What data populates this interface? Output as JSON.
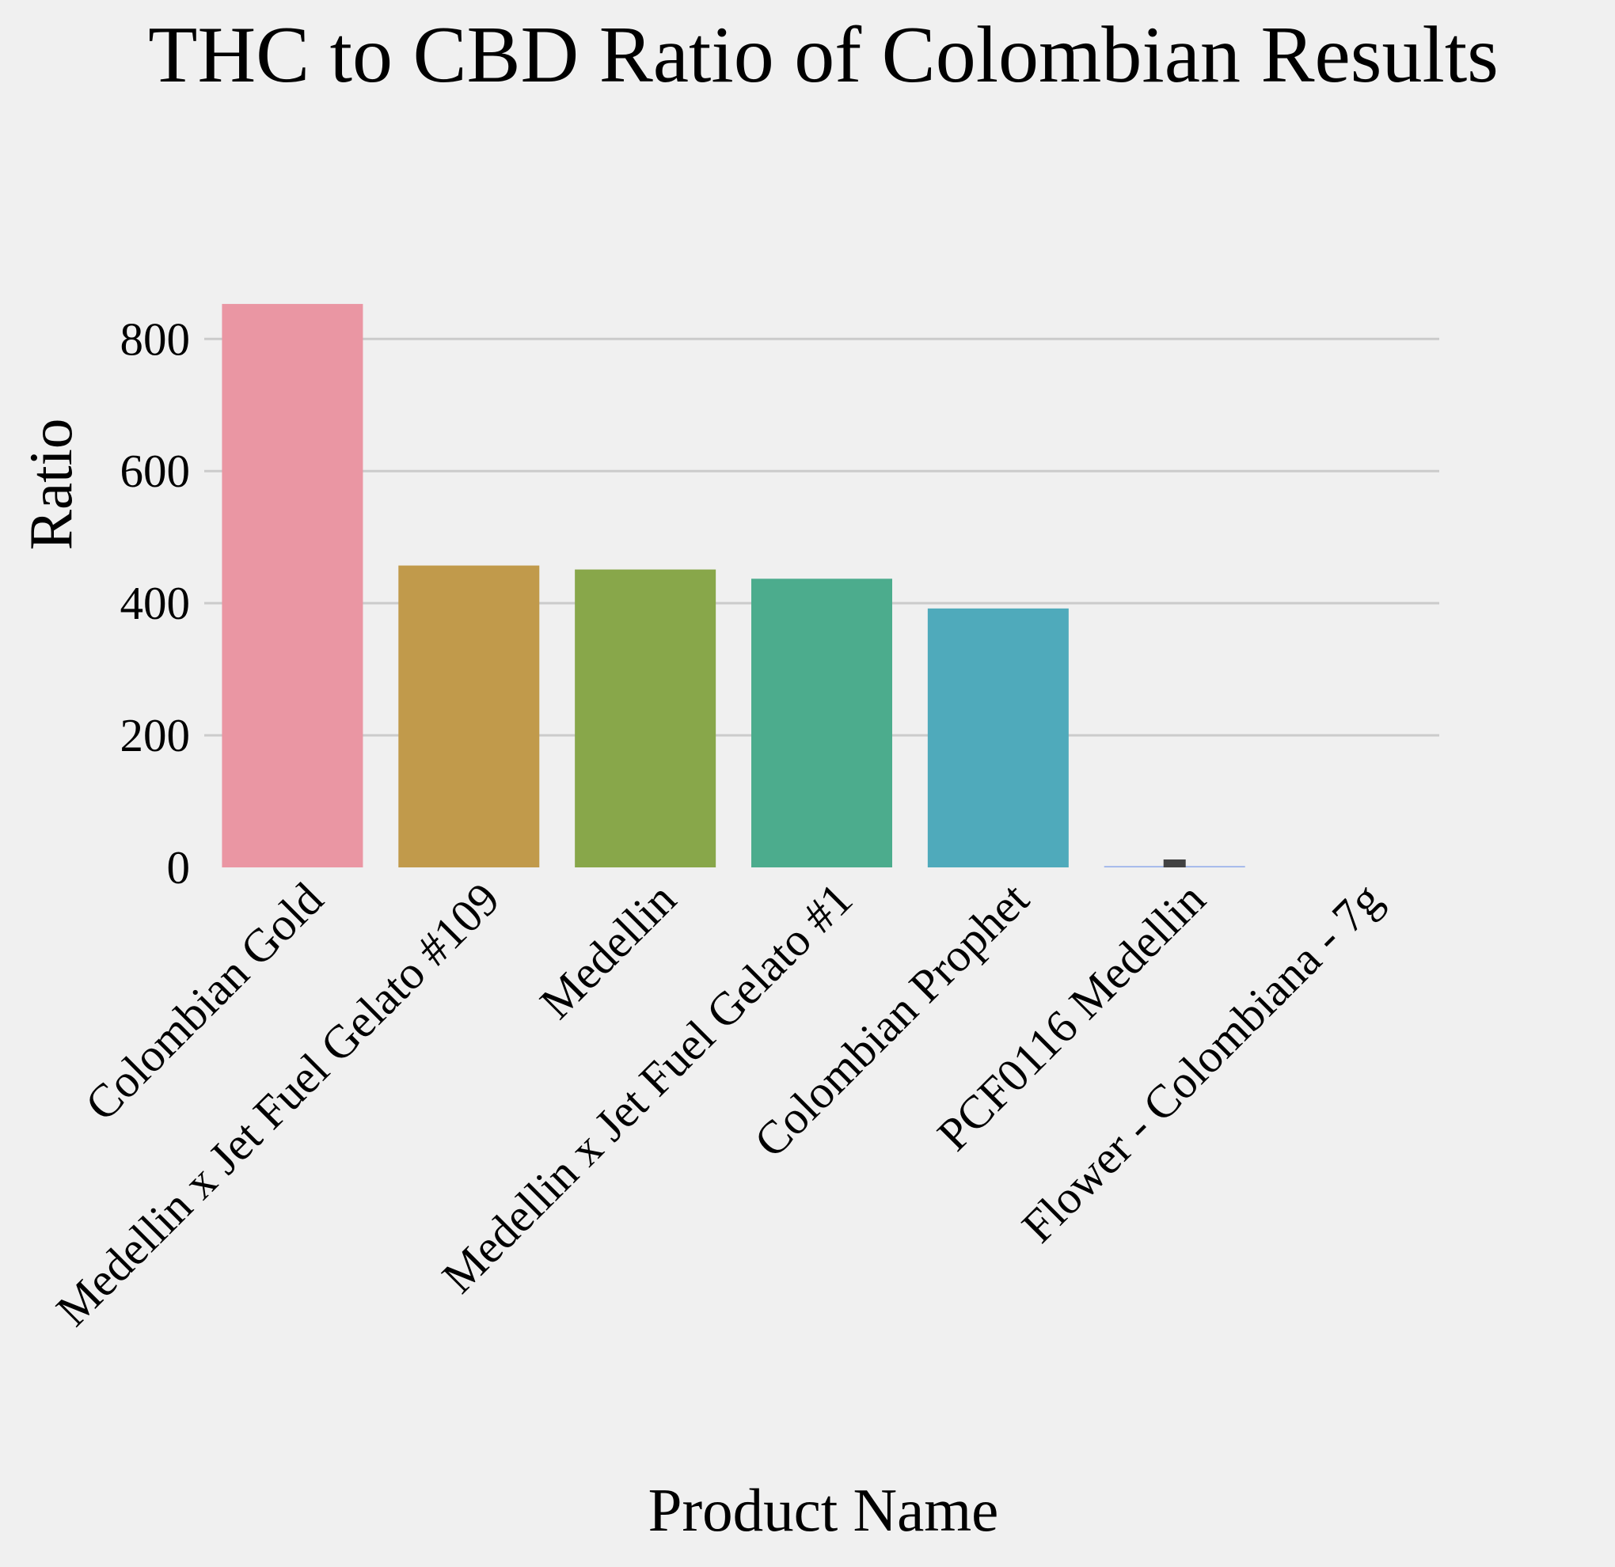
{
  "chart_data": {
    "type": "bar",
    "title": "THC to CBD Ratio of Colombian Results",
    "xlabel": "Product Name",
    "ylabel": "Ratio",
    "categories": [
      "Colombian Gold",
      "Medellin x Jet Fuel Gelato #109",
      "Medellin",
      "Medellin x Jet Fuel Gelato #1",
      "Colombian Prophet",
      "PCF0116 Medellin",
      "Flower - Colombiana - 7g"
    ],
    "values": [
      853,
      457,
      451,
      437,
      392,
      2,
      0
    ],
    "error_bar": {
      "category": "PCF0116 Medellin",
      "low": 0,
      "high": 12
    },
    "ylim": [
      0,
      880
    ],
    "yticks": [
      0,
      200,
      400,
      600,
      800
    ],
    "grid": "horizontal",
    "colors": [
      "#ea96a3",
      "#c19a4b",
      "#88a74a",
      "#4cac8d",
      "#4faabb",
      "#98b0ea",
      "#e18fdd"
    ],
    "background": "#f0f0f0",
    "grid_color": "#cbcbcb",
    "error_bar_color": "#424242",
    "tick_rotation_deg": -45
  }
}
